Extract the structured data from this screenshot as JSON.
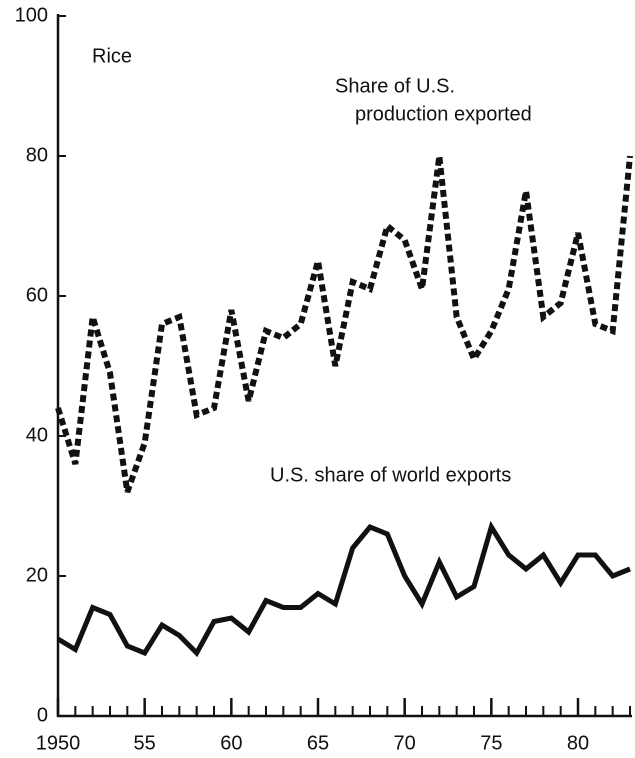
{
  "chart_data": {
    "type": "line",
    "annotations": [
      "Rice",
      "Share of U.S.",
      "production exported",
      "U.S. share of world exports"
    ],
    "x": [
      1950,
      1951,
      1952,
      1953,
      1954,
      1955,
      1956,
      1957,
      1958,
      1959,
      1960,
      1961,
      1962,
      1963,
      1964,
      1965,
      1966,
      1967,
      1968,
      1969,
      1970,
      1971,
      1972,
      1973,
      1974,
      1975,
      1976,
      1977,
      1978,
      1979,
      1980,
      1981,
      1982,
      1983
    ],
    "series": [
      {
        "color": "#111111",
        "dashed": true,
        "values": [
          44,
          36,
          57,
          49,
          32,
          39,
          56,
          57,
          43,
          44,
          58,
          45,
          55,
          54,
          56,
          65,
          50,
          62,
          61,
          70,
          68,
          61,
          80,
          57,
          51,
          55,
          61,
          75,
          57,
          59,
          69,
          56,
          55,
          80
        ]
      },
      {
        "color": "#111111",
        "dashed": false,
        "values": [
          11,
          9.5,
          15.5,
          14.5,
          10,
          9,
          13,
          11.5,
          9,
          13.5,
          14,
          12,
          16.5,
          15.5,
          15.5,
          17.5,
          16,
          24,
          27,
          26,
          20,
          16,
          22,
          17,
          18.5,
          27,
          23,
          21,
          23,
          19,
          23,
          23,
          20,
          21
        ]
      }
    ],
    "xlim": [
      1950,
      1983
    ],
    "xticks": [
      1950,
      {
        "value": 1955,
        "label": "55"
      },
      {
        "value": 1960,
        "label": "60"
      },
      {
        "value": 1965,
        "label": "65"
      },
      {
        "value": 1970,
        "label": "70"
      },
      {
        "value": 1975,
        "label": "75"
      },
      {
        "value": 1980,
        "label": "80"
      }
    ],
    "ylim": [
      0,
      100
    ],
    "yticks": [
      0,
      20,
      40,
      60,
      80,
      100
    ],
    "grid": false
  }
}
